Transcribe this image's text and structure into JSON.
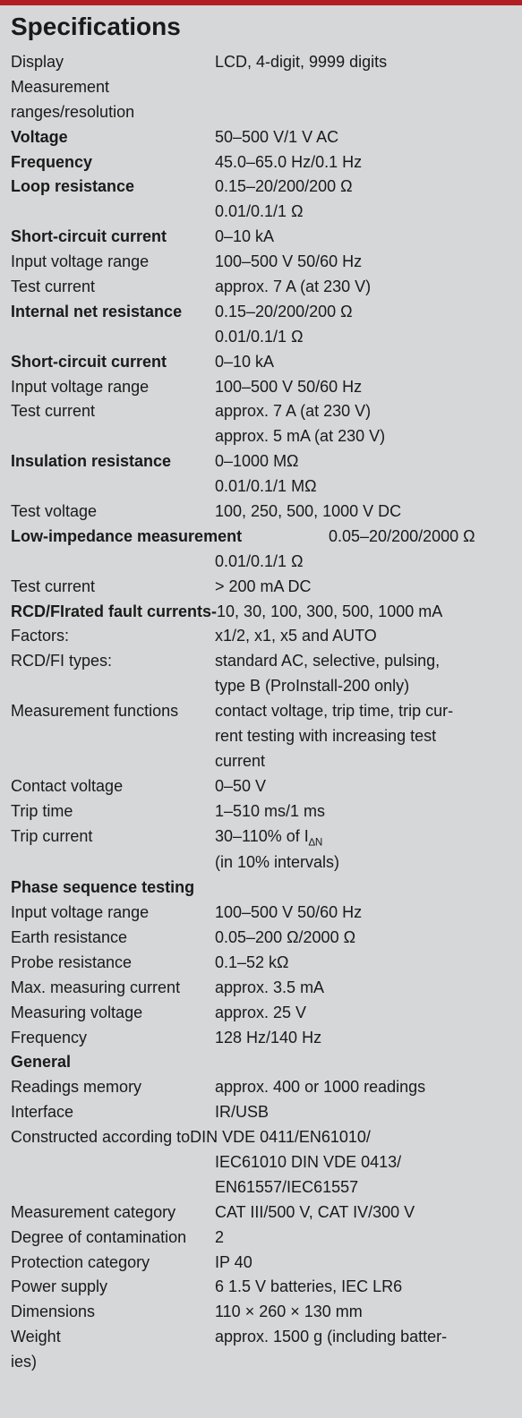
{
  "colors": {
    "topBorder": "#b01f24",
    "background": "#d6d7d8",
    "text": "#1a1a1a"
  },
  "title": "Specifications",
  "rows": [
    {
      "label": "Display",
      "value": "LCD, 4-digit, 9999 digits"
    },
    {
      "label": "Measurement ranges/resolution",
      "span": true
    },
    {
      "label": "Voltage",
      "boldLabel": true,
      "value": "50–500 V/1 V AC"
    },
    {
      "label": "Frequency",
      "boldLabel": true,
      "value": "45.0–65.0 Hz/0.1 Hz"
    },
    {
      "label": "Loop resistance",
      "boldLabel": true,
      "value": "0.15–20/200/200 Ω"
    },
    {
      "label": "",
      "value": "0.01/0.1/1 Ω"
    },
    {
      "label": "Short-circuit current",
      "boldLabel": true,
      "value": "0–10 kA"
    },
    {
      "label": "Input voltage range",
      "value": "100–500 V 50/60 Hz"
    },
    {
      "label": "Test current",
      "value": "approx. 7 A (at 230 V)"
    },
    {
      "label": "Internal net resistance",
      "boldLabel": true,
      "value": "0.15–20/200/200 Ω"
    },
    {
      "label": "",
      "value": "0.01/0.1/1 Ω"
    },
    {
      "label": "Short-circuit current",
      "boldLabel": true,
      "value": "0–10 kA"
    },
    {
      "label": "Input voltage range",
      "value": "100–500 V 50/60 Hz"
    },
    {
      "label": "Test current",
      "value": "approx. 7 A (at 230 V)"
    },
    {
      "label": "",
      "value": "approx. 5 mA (at 230 V)"
    },
    {
      "label": "Insulation resistance",
      "boldLabel": true,
      "value": "0–1000 MΩ"
    },
    {
      "label": "",
      "value": "0.01/0.1/1 MΩ"
    },
    {
      "label": "Test voltage",
      "value": "100, 250, 500, 1000 V DC"
    },
    {
      "label": "Low-impedance measurement",
      "boldLabel": true,
      "wideLabel": true,
      "value": "0.05–20/200/2000 Ω"
    },
    {
      "label": "",
      "value": "0.01/0.1/1 Ω"
    },
    {
      "label": "Test current",
      "value": "> 200 mA DC"
    },
    {
      "label": "RCD/FIrated fault currents-",
      "boldLabel": true,
      "labelNoGap": true,
      "value": "10, 30, 100, 300, 500, 1000 mA"
    },
    {
      "label": "Factors:",
      "value": "x1/2, x1, x5 and AUTO"
    },
    {
      "label": "RCD/FI types:",
      "value": "standard AC, selective, pulsing,"
    },
    {
      "label": "",
      "value": "type B (ProInstall-200 only)"
    },
    {
      "label": "Measurement functions",
      "value": "contact voltage, trip time, trip cur-"
    },
    {
      "label": "",
      "value": "rent testing with increasing test"
    },
    {
      "label": "",
      "value": "current"
    },
    {
      "label": "Contact voltage",
      "value": "0–50 V"
    },
    {
      "label": "Trip time",
      "value": "1–510 ms/1 ms"
    },
    {
      "label": "Trip current",
      "value": "30–110% of I∆N",
      "subscript": "∆N"
    },
    {
      "label": "",
      "value": "(in 10% intervals)"
    },
    {
      "label": "Phase sequence testing",
      "boldLabel": true,
      "span": true
    },
    {
      "label": "Input voltage range",
      "value": "100–500 V 50/60 Hz"
    },
    {
      "label": "Earth resistance",
      "value": "0.05–200 Ω/2000 Ω"
    },
    {
      "label": "Probe resistance",
      "value": "0.1–52 kΩ"
    },
    {
      "label": "Max. measuring current",
      "value": "approx. 3.5 mA"
    },
    {
      "label": "Measuring voltage",
      "value": "approx. 25 V"
    },
    {
      "label": "Frequency",
      "value": "128 Hz/140 Hz"
    },
    {
      "label": "General",
      "boldLabel": true,
      "span": true
    },
    {
      "label": "Readings memory",
      "value": "approx. 400 or 1000 readings"
    },
    {
      "label": "Interface",
      "value": "IR/USB"
    },
    {
      "label": "Constructed according to",
      "labelNoGap": true,
      "value": "DIN VDE 0411/EN61010/"
    },
    {
      "label": "",
      "value": "IEC61010 DIN VDE 0413/"
    },
    {
      "label": "",
      "value": "EN61557/IEC61557"
    },
    {
      "label": "Measurement category",
      "value": "CAT III/500 V, CAT IV/300 V"
    },
    {
      "label": "Degree of contamination",
      "value": "2"
    },
    {
      "label": "Protection category",
      "value": "IP 40"
    },
    {
      "label": "Power supply",
      "value": "6 1.5 V batteries, IEC LR6"
    },
    {
      "label": "Dimensions",
      "value": "110 × 260 × 130 mm"
    },
    {
      "label": "Weight",
      "value": "approx. 1500 g (including batter-"
    },
    {
      "label": "ies)",
      "span": true
    }
  ]
}
